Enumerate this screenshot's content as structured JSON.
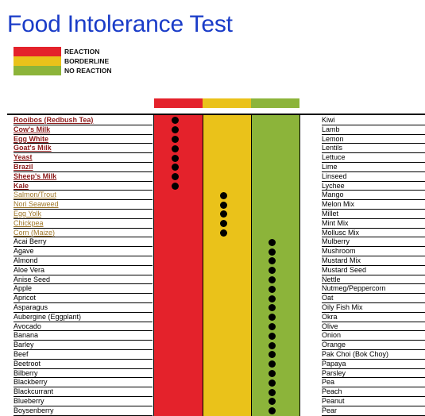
{
  "title": "Food Intolerance Test",
  "colors": {
    "reaction": "#e4222b",
    "borderline": "#eac21a",
    "no_reaction": "#8cb43a",
    "title": "#1a3cc8",
    "reaction_text": "#8b1a1a",
    "borderline_text": "#a0782a"
  },
  "legend": [
    {
      "label": "REACTION",
      "status": "reaction"
    },
    {
      "label": "BORDERLINE",
      "status": "borderline"
    },
    {
      "label": "NO REACTION",
      "status": "no_reaction"
    }
  ],
  "left_foods": [
    {
      "name": "Rooibos (Redbush Tea)",
      "status": "reaction"
    },
    {
      "name": "Cow's Milk",
      "status": "reaction"
    },
    {
      "name": "Egg White",
      "status": "reaction"
    },
    {
      "name": "Goat's Milk",
      "status": "reaction"
    },
    {
      "name": "Yeast",
      "status": "reaction"
    },
    {
      "name": "Brazil",
      "status": "reaction"
    },
    {
      "name": "Sheep's Milk",
      "status": "reaction"
    },
    {
      "name": "Kale",
      "status": "reaction"
    },
    {
      "name": "Salmon/Trout",
      "status": "borderline"
    },
    {
      "name": "Nori Seaweed",
      "status": "borderline"
    },
    {
      "name": "Egg Yolk",
      "status": "borderline"
    },
    {
      "name": "Chickpea",
      "status": "borderline"
    },
    {
      "name": "Corn (Maize)",
      "status": "borderline"
    },
    {
      "name": "Acai Berry",
      "status": "no_reaction"
    },
    {
      "name": "Agave",
      "status": "no_reaction"
    },
    {
      "name": "Almond",
      "status": "no_reaction"
    },
    {
      "name": "Aloe Vera",
      "status": "no_reaction"
    },
    {
      "name": "Anise Seed",
      "status": "no_reaction"
    },
    {
      "name": "Apple",
      "status": "no_reaction"
    },
    {
      "name": "Apricot",
      "status": "no_reaction"
    },
    {
      "name": "Asparagus",
      "status": "no_reaction"
    },
    {
      "name": "Aubergine (Eggplant)",
      "status": "no_reaction"
    },
    {
      "name": "Avocado",
      "status": "no_reaction"
    },
    {
      "name": "Banana",
      "status": "no_reaction"
    },
    {
      "name": "Barley",
      "status": "no_reaction"
    },
    {
      "name": "Beef",
      "status": "no_reaction"
    },
    {
      "name": "Beetroot",
      "status": "no_reaction"
    },
    {
      "name": "Bilberry",
      "status": "no_reaction"
    },
    {
      "name": "Blackberry",
      "status": "no_reaction"
    },
    {
      "name": "Blackcurrant",
      "status": "no_reaction"
    },
    {
      "name": "Blueberry",
      "status": "no_reaction"
    },
    {
      "name": "Boysenberry",
      "status": "no_reaction"
    }
  ],
  "right_foods": [
    "Kiwi",
    "Lamb",
    "Lemon",
    "Lentils",
    "Lettuce",
    "Lime",
    "Linseed",
    "Lychee",
    "Mango",
    "Melon Mix",
    "Millet",
    "Mint Mix",
    "Mollusc Mix",
    "Mulberry",
    "Mushroom",
    "Mustard Mix",
    "Mustard Seed",
    "Nettle",
    "Nutmeg/Peppercorn",
    "Oat",
    "Oily Fish Mix",
    "Okra",
    "Olive",
    "Onion",
    "Orange",
    "Pak Choi (Bok Choy)",
    "Papaya",
    "Parsley",
    "Pea",
    "Peach",
    "Peanut",
    "Pear"
  ]
}
